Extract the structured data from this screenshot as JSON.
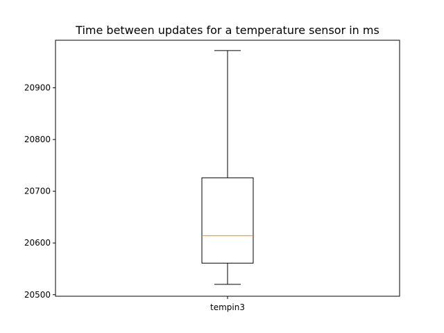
{
  "chart_data": {
    "type": "box",
    "title": "Time between updates for a temperature sensor in ms",
    "xlabel": "",
    "ylabel": "",
    "categories": [
      "tempin3"
    ],
    "series": [
      {
        "category": "tempin3",
        "whisker_low": 20520,
        "q1": 20561,
        "median": 20614,
        "q3": 20726,
        "whisker_high": 20972
      }
    ],
    "ylim": [
      20497,
      20992
    ],
    "yticks": [
      20500,
      20600,
      20700,
      20800,
      20900
    ],
    "grid": false,
    "colors": {
      "box": "#000000",
      "median": "#ff7f0e",
      "axes": "#000000"
    }
  }
}
